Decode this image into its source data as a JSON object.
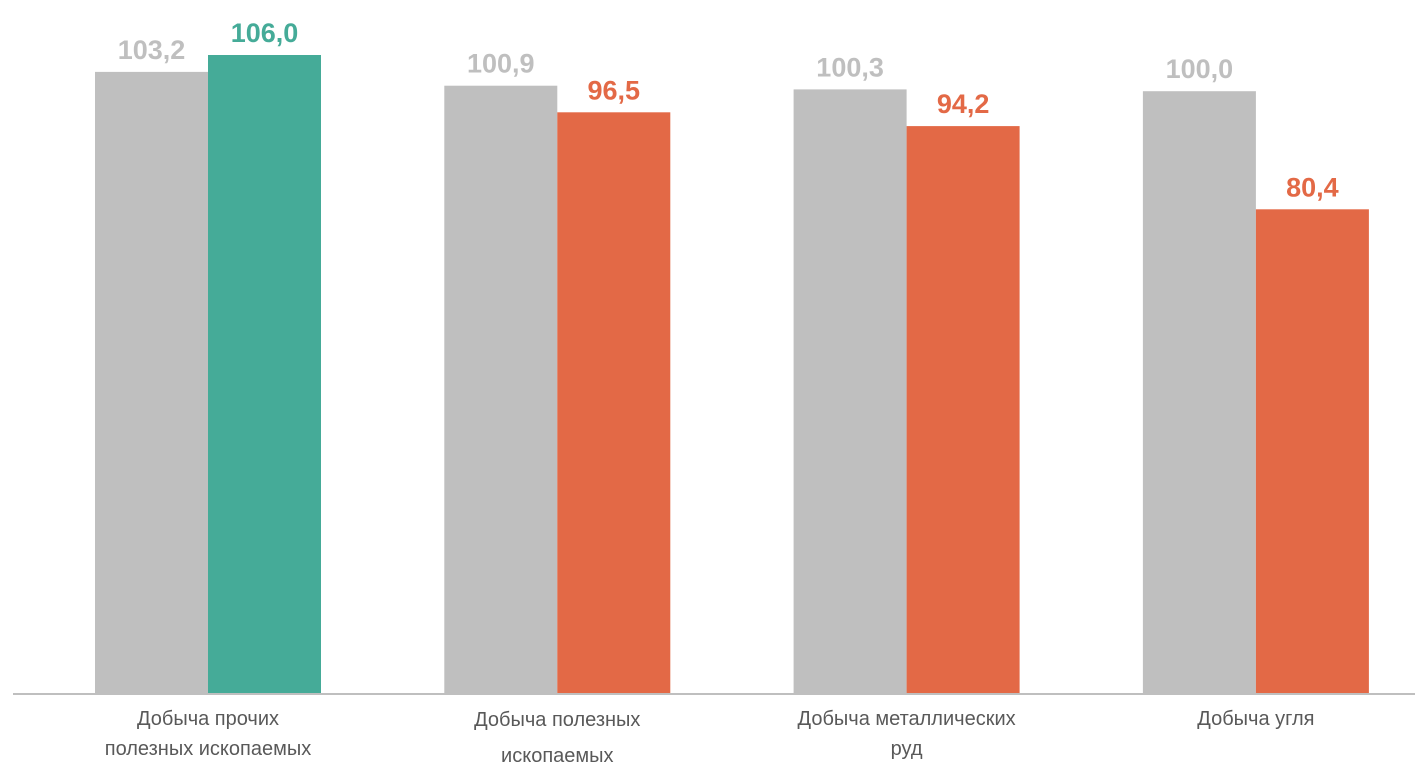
{
  "chart_data": {
    "type": "bar",
    "title": "",
    "xlabel": "",
    "ylabel": "",
    "categories": [
      [
        "Добыча прочих",
        "полезных ископаемых"
      ],
      [
        "Добыча полезных",
        "ископаемых"
      ],
      [
        "Добыча металлических",
        "руд"
      ],
      [
        "Добыча угля"
      ]
    ],
    "series": [
      {
        "values": [
          103.2,
          100.9,
          100.3,
          100.0
        ],
        "labels": [
          "103,2",
          "100,9",
          "100,3",
          "100,0"
        ],
        "colors": [
          "#BFBFBF",
          "#BFBFBF",
          "#BFBFBF",
          "#BFBFBF"
        ],
        "label_colors": [
          "#BFBFBF",
          "#BFBFBF",
          "#BFBFBF",
          "#BFBFBF"
        ]
      },
      {
        "values": [
          106.0,
          96.5,
          94.2,
          80.4
        ],
        "labels": [
          "106,0",
          "96,5",
          "94,2",
          "80,4"
        ],
        "colors": [
          "#45AB98",
          "#E36946",
          "#E36946",
          "#E36946"
        ],
        "label_colors": [
          "#45AB98",
          "#E36946",
          "#E36946",
          "#E36946"
        ]
      }
    ],
    "ylim": [
      0,
      106
    ],
    "grid": false,
    "legend": "none",
    "axis_color": "#BFBFBF"
  }
}
